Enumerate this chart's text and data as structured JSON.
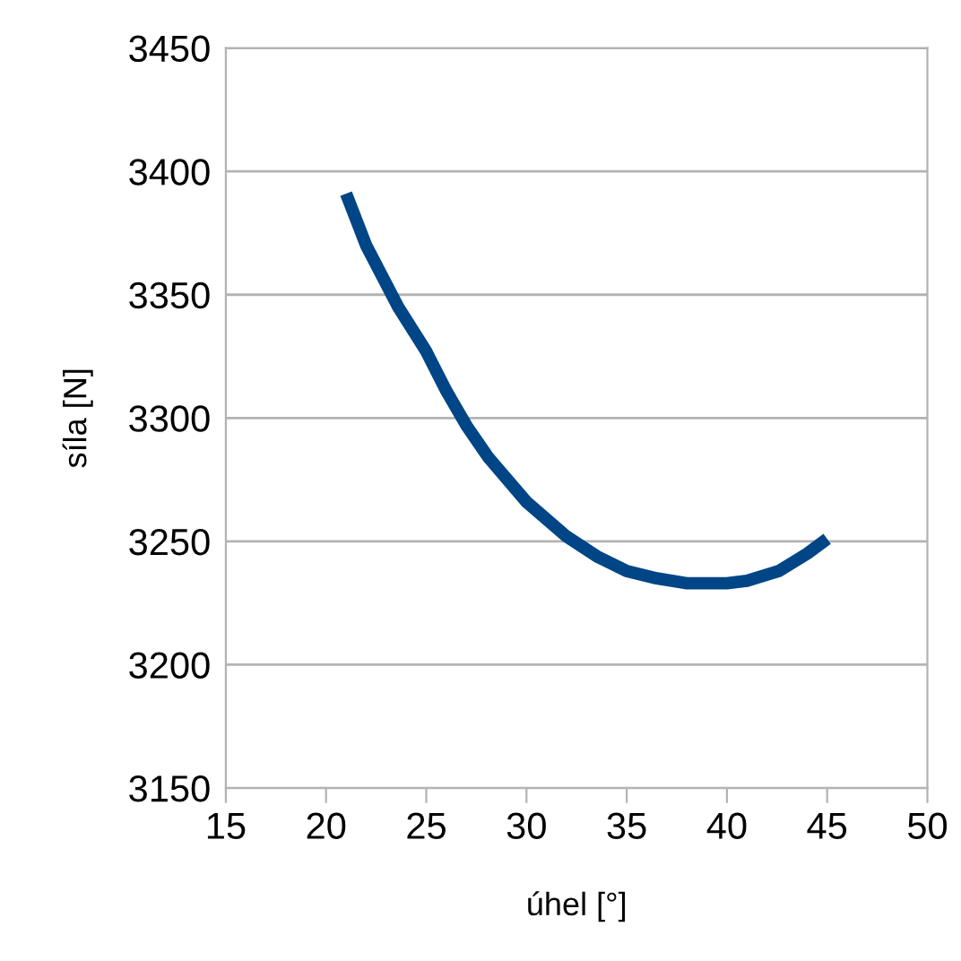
{
  "chart_data": {
    "type": "line",
    "xlabel": "úhel [°]",
    "ylabel": "síla [N]",
    "series": [
      {
        "color": "#004586",
        "x": [
          21,
          22,
          23.6,
          25,
          26,
          27,
          28.1,
          30,
          32,
          33.5,
          35,
          36.5,
          38,
          40,
          41,
          42.6,
          44,
          45
        ],
        "values": [
          3391,
          3370,
          3345,
          3327,
          3311,
          3297,
          3284,
          3266,
          3252,
          3244,
          3238,
          3235,
          3233,
          3233,
          3234,
          3238,
          3245,
          3251
        ]
      }
    ],
    "xlim": [
      15,
      50
    ],
    "xticks": [
      15,
      20,
      25,
      30,
      35,
      40,
      45,
      50
    ],
    "ylim": [
      3150,
      3450
    ],
    "yticks": [
      3150,
      3200,
      3250,
      3300,
      3350,
      3400,
      3450
    ],
    "grid": "y",
    "legend": false,
    "marker": "none",
    "line_style": "solid"
  }
}
